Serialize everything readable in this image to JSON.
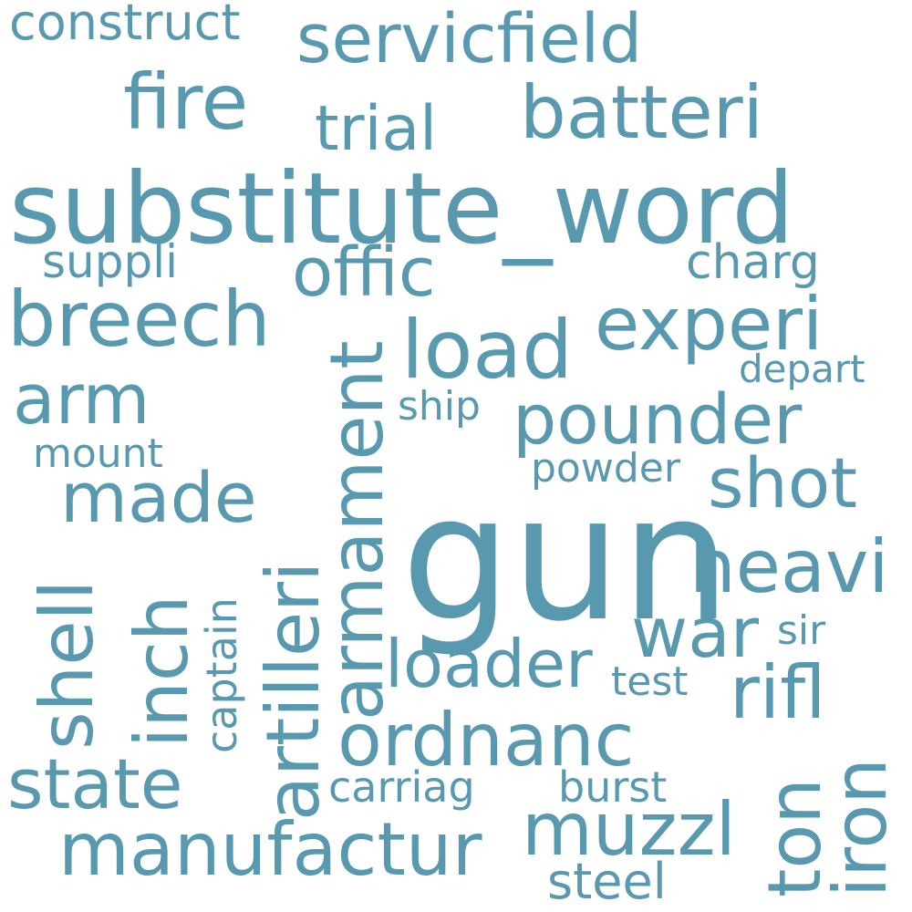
{
  "cloud": {
    "words": {
      "gun": "gun",
      "substitute_word": "substitute_word",
      "servicfield": "servicfield",
      "batteri": "batteri",
      "fire": "fire",
      "trial": "trial",
      "construct": "construct",
      "breech": "breech",
      "offic": "offic",
      "suppli": "suppli",
      "charg": "charg",
      "experi": "experi",
      "load": "load",
      "depart": "depart",
      "arm": "arm",
      "ship": "ship",
      "pounder": "pounder",
      "mount": "mount",
      "made": "made",
      "shot": "shot",
      "powder": "powder",
      "artilleri": "artilleri",
      "armament": "armament",
      "heavi": "heavi",
      "shell": "shell",
      "inch": "inch",
      "captain": "captain",
      "war": "war",
      "sir": "sir",
      "loader": "loader",
      "test": "test",
      "rifl": "rifl",
      "ordnanc": "ordnanc",
      "state": "state",
      "iron": "iron",
      "carriag": "carriag",
      "burst": "burst",
      "ton": "ton",
      "manufactur": "manufactur",
      "muzzl": "muzzl",
      "steel": "steel"
    }
  }
}
